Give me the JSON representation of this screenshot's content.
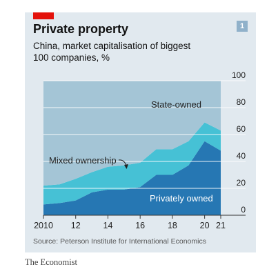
{
  "header": {
    "title": "Private property",
    "subtitle": "China, market capitalisation of biggest 100 companies, %",
    "badge": "1"
  },
  "colors": {
    "red_tab": "#e3120b",
    "badge": "#90b1ca",
    "state": "#a4c5d6",
    "mixed": "#46c1d5",
    "private": "#2677b3",
    "grid": "#ffffff",
    "axis": "#333333"
  },
  "chart_data": {
    "type": "area",
    "stacked": true,
    "x": [
      2010,
      2011,
      2012,
      2013,
      2014,
      2015,
      2016,
      2017,
      2018,
      2019,
      2020,
      2021
    ],
    "xticks": [
      {
        "value": 2010,
        "label": "2010"
      },
      {
        "value": 2012,
        "label": "12"
      },
      {
        "value": 2014,
        "label": "14"
      },
      {
        "value": 2016,
        "label": "16"
      },
      {
        "value": 2018,
        "label": "18"
      },
      {
        "value": 2020,
        "label": "20"
      },
      {
        "value": 2021,
        "label": "21"
      }
    ],
    "yticks": [
      0,
      20,
      40,
      60,
      80,
      100
    ],
    "ylim": [
      0,
      100
    ],
    "y_axis_side": "right",
    "grid": true,
    "series": [
      {
        "name": "Privately owned",
        "values": [
          8,
          9,
          11,
          17,
          19,
          19,
          21,
          30,
          30,
          37,
          55,
          48
        ]
      },
      {
        "name": "Mixed ownership",
        "values": [
          14,
          14,
          16,
          15,
          17,
          18,
          18,
          19,
          19,
          18,
          14,
          15
        ]
      },
      {
        "name": "State-owned",
        "values": [
          78,
          77,
          73,
          68,
          64,
          63,
          61,
          51,
          51,
          45,
          31,
          37
        ]
      }
    ],
    "annotations": [
      {
        "text": "State-owned"
      },
      {
        "text": "Mixed ownership"
      },
      {
        "text": "Privately owned"
      }
    ]
  },
  "footer": {
    "source": "Source: Peterson Institute for International Economics",
    "brand": "The Economist"
  }
}
